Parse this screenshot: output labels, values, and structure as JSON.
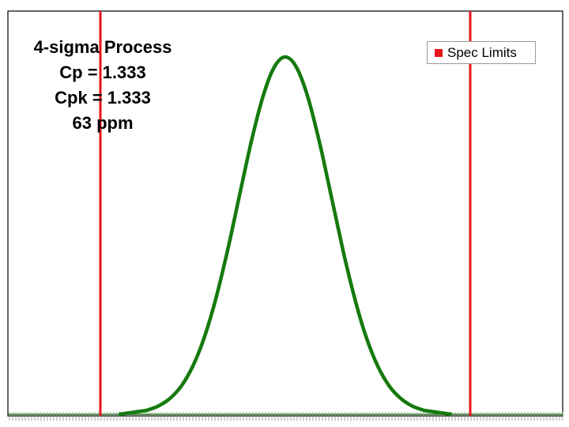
{
  "chart_data": {
    "type": "line",
    "title": "",
    "xlabel": "",
    "ylabel": "",
    "xlim": [
      -6,
      6
    ],
    "ylim": [
      0,
      1.1
    ],
    "grid": false,
    "legend_position": "top-right",
    "annotation_lines": [
      "4-sigma Process",
      "Cp = 1.333",
      "Cpk = 1.333",
      "63 ppm"
    ],
    "series": [
      {
        "name": "",
        "kind": "distribution",
        "color": "#157a0e",
        "x": [
          -3.0,
          -2.75,
          -2.5,
          -2.25,
          -2.0,
          -1.75,
          -1.5,
          -1.25,
          -1.0,
          -0.75,
          -0.5,
          -0.25,
          0.0,
          0.25,
          0.5,
          0.75,
          1.0,
          1.25,
          1.5,
          1.75,
          2.0,
          2.25,
          2.5,
          2.75,
          3.0
        ],
        "values": [
          0.011,
          0.023,
          0.044,
          0.079,
          0.135,
          0.216,
          0.325,
          0.458,
          0.607,
          0.755,
          0.882,
          0.969,
          1.0,
          0.969,
          0.882,
          0.755,
          0.607,
          0.458,
          0.325,
          0.216,
          0.135,
          0.079,
          0.044,
          0.023,
          0.011
        ]
      },
      {
        "name": "Spec Limits",
        "kind": "vertical-lines",
        "color": "#e8141a",
        "x": [
          -4.0,
          4.0
        ]
      }
    ]
  }
}
